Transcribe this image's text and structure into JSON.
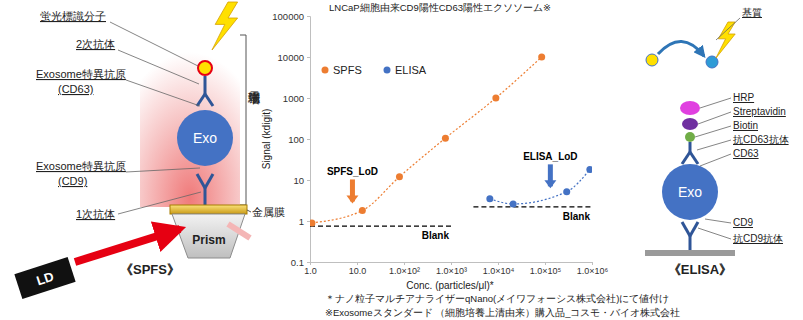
{
  "chart_data": {
    "type": "scatter",
    "title": "LNCaP細胞由来CD9陽性CD63陽性エクソソーム※",
    "x_label": "Conc. (particles/μl)*",
    "y_label": "Signal (kdigit)",
    "log": true,
    "grid": false,
    "legend": "top-left",
    "xlim": [
      1,
      1000000
    ],
    "ylim": [
      0.1,
      100000
    ],
    "xticks": [
      {
        "value": 1,
        "label": "1.0"
      },
      {
        "value": 10,
        "label": "10.0"
      },
      {
        "value": 100,
        "label": "1.0×10²"
      },
      {
        "value": 1000,
        "label": "1.0×10³"
      },
      {
        "value": 10000,
        "label": "1.0×10⁴"
      },
      {
        "value": 100000,
        "label": "1.0×10⁵"
      },
      {
        "value": 1000000,
        "label": "1.0×10⁶"
      }
    ],
    "yticks": [
      0.1,
      1,
      10,
      100,
      1000,
      10000,
      100000
    ],
    "series": [
      {
        "name": "SPFS",
        "color": "#ed7d31",
        "marker": "circle",
        "line_style": "dotted",
        "x": [
          1.1,
          13,
          80,
          760,
          9000,
          85000
        ],
        "values": [
          0.9,
          1.8,
          12,
          105,
          1000,
          10000
        ]
      },
      {
        "name": "ELISA",
        "color": "#4472c4",
        "marker": "circle",
        "line_style": "dotted",
        "x": [
          6700,
          21000,
          290000,
          900000
        ],
        "values": [
          3.5,
          2.6,
          5.2,
          18
        ]
      }
    ],
    "reference_lines": [
      {
        "label": "Blank",
        "x": [
          1,
          1000
        ],
        "y": 0.75,
        "line_style": "dashed"
      },
      {
        "label": "Blank",
        "x": [
          3000,
          1000000
        ],
        "y": 2.2,
        "line_style": "dashed"
      }
    ],
    "annotations": [
      {
        "text": "SPFS_LoD",
        "x": 8,
        "y": 3,
        "color": "#ed7d31"
      },
      {
        "text": "ELISA_LoD",
        "x": 130000,
        "y": 7,
        "color": "#4472c4"
      }
    ]
  },
  "footnotes": [
    "＊ナノ粒子マルチアナライザーqNano(メイワフォーシス株式会社)にて値付け",
    "※Exosomeスタンダード （細胞培養上清由来）購入品_コスモ・バイオ株式会社"
  ],
  "spfs_diagram": {
    "fluor_label": "蛍光標識分子",
    "secondary_antibody": "2次抗体",
    "antigen_cd63": [
      "Exosome特異抗原",
      "(CD63)"
    ],
    "antigen_cd9": [
      "Exosome特異抗原",
      "(CD9)"
    ],
    "primary_antibody": "1次抗体",
    "field": "増強電場",
    "exosome": "Exo",
    "metal_film": "金属膜",
    "prism": "Prism",
    "laser": "LD",
    "title": "《SPFS》"
  },
  "elisa_diagram": {
    "substrate": "基質",
    "hrp": "HRP",
    "streptavidin": "Streptavidin",
    "biotin": "Biotin",
    "anti_cd63": "抗CD63抗体",
    "cd63": "CD63",
    "exosome": "Exo",
    "cd9": "CD9",
    "anti_cd9": "抗CD9抗体",
    "title": "《ELISA》"
  }
}
